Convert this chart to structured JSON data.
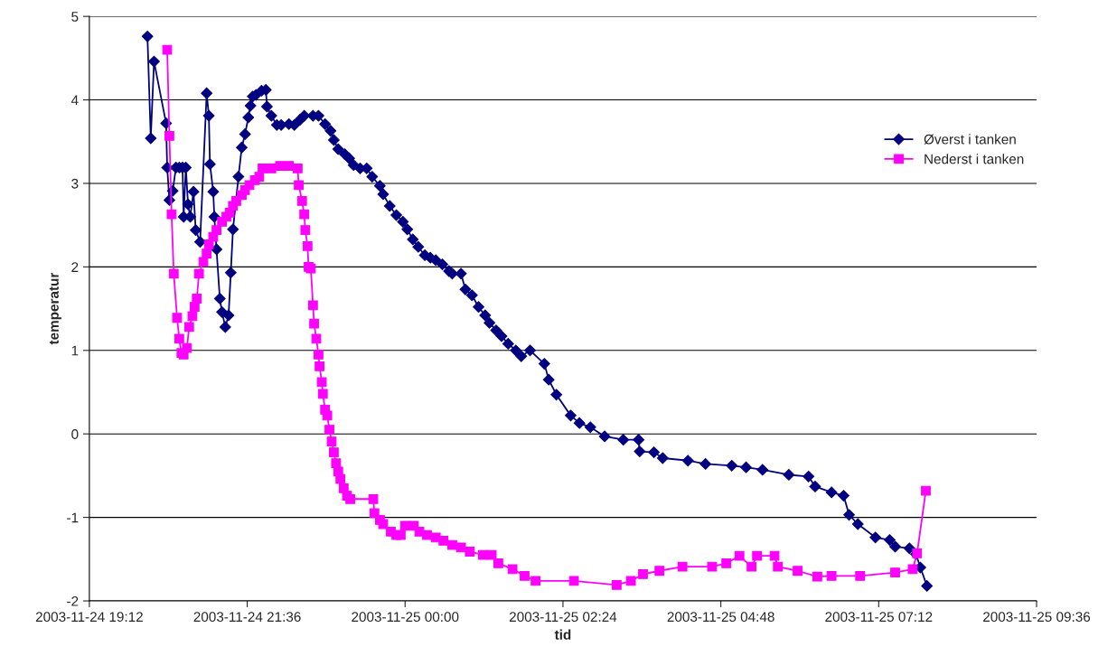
{
  "chart_data": {
    "type": "line",
    "xlabel": "tid",
    "ylabel": "temperatur",
    "xlim": [
      "2003-11-24T19:12",
      "2003-11-25T09:36"
    ],
    "ylim": [
      -2,
      5
    ],
    "xticks": [
      {
        "value": "2003-11-24T19:12",
        "label": "2003-11-24 19:12"
      },
      {
        "value": "2003-11-24T21:36",
        "label": "2003-11-24 21:36"
      },
      {
        "value": "2003-11-25T00:00",
        "label": "2003-11-25 00:00"
      },
      {
        "value": "2003-11-25T02:24",
        "label": "2003-11-25 02:24"
      },
      {
        "value": "2003-11-25T04:48",
        "label": "2003-11-25 04:48"
      },
      {
        "value": "2003-11-25T07:12",
        "label": "2003-11-25 07:12"
      },
      {
        "value": "2003-11-25T09:36",
        "label": "2003-11-25 09:36"
      }
    ],
    "yticks": [
      -2,
      -1,
      0,
      1,
      2,
      3,
      4,
      5
    ],
    "grid": "y",
    "legend": "top right",
    "line_style": "solid",
    "series": [
      {
        "name": "Øverst i tanken",
        "color": "#000080",
        "marker": "diamond",
        "x": [
          "2003-11-24T20:05",
          "2003-11-24T20:08",
          "2003-11-24T20:11",
          "2003-11-24T20:22",
          "2003-11-24T20:23",
          "2003-11-24T20:25",
          "2003-11-24T20:28",
          "2003-11-24T20:31",
          "2003-11-24T20:34",
          "2003-11-24T20:37",
          "2003-11-24T20:38",
          "2003-11-24T20:40",
          "2003-11-24T20:42",
          "2003-11-24T20:44",
          "2003-11-24T20:47",
          "2003-11-24T20:49",
          "2003-11-24T20:53",
          "2003-11-24T20:59",
          "2003-11-24T21:01",
          "2003-11-24T21:02",
          "2003-11-24T21:05",
          "2003-11-24T21:06",
          "2003-11-24T21:08",
          "2003-11-24T21:11",
          "2003-11-24T21:13",
          "2003-11-24T21:16",
          "2003-11-24T21:19",
          "2003-11-24T21:21",
          "2003-11-24T21:23",
          "2003-11-24T21:28",
          "2003-11-24T21:31",
          "2003-11-24T21:34",
          "2003-11-24T21:37",
          "2003-11-24T21:39",
          "2003-11-24T21:41",
          "2003-11-24T21:44",
          "2003-11-24T21:49",
          "2003-11-24T21:53",
          "2003-11-24T21:54",
          "2003-11-24T21:58",
          "2003-11-24T22:03",
          "2003-11-24T22:07",
          "2003-11-24T22:14",
          "2003-11-24T22:19",
          "2003-11-24T22:24",
          "2003-11-24T22:28",
          "2003-11-24T22:36",
          "2003-11-24T22:41",
          "2003-11-24T22:47",
          "2003-11-24T22:52",
          "2003-11-24T22:55",
          "2003-11-24T22:59",
          "2003-11-24T23:05",
          "2003-11-24T23:09",
          "2003-11-24T23:13",
          "2003-11-24T23:19",
          "2003-11-24T23:25",
          "2003-11-24T23:30",
          "2003-11-24T23:37",
          "2003-11-24T23:40",
          "2003-11-24T23:46",
          "2003-11-24T23:52",
          "2003-11-24T23:58",
          "2003-11-25T00:02",
          "2003-11-25T00:07",
          "2003-11-25T00:12",
          "2003-11-25T00:18",
          "2003-11-25T00:23",
          "2003-11-25T00:28",
          "2003-11-25T00:34",
          "2003-11-25T00:40",
          "2003-11-25T00:43",
          "2003-11-25T00:51",
          "2003-11-25T00:55",
          "2003-11-25T01:01",
          "2003-11-25T01:07",
          "2003-11-25T01:13",
          "2003-11-25T01:17",
          "2003-11-25T01:23",
          "2003-11-25T01:28",
          "2003-11-25T01:34",
          "2003-11-25T01:41",
          "2003-11-25T01:46",
          "2003-11-25T01:54",
          "2003-11-25T02:07",
          "2003-11-25T02:11",
          "2003-11-25T02:18",
          "2003-11-25T02:31",
          "2003-11-25T02:39",
          "2003-11-25T02:49",
          "2003-11-25T03:02",
          "2003-11-25T03:19",
          "2003-11-25T03:33",
          "2003-11-25T03:34",
          "2003-11-25T03:47",
          "2003-11-25T03:55",
          "2003-11-25T04:18",
          "2003-11-25T04:34",
          "2003-11-25T04:58",
          "2003-11-25T05:11",
          "2003-11-25T05:26",
          "2003-11-25T05:50",
          "2003-11-25T06:08",
          "2003-11-25T06:14",
          "2003-11-25T06:29",
          "2003-11-25T06:40",
          "2003-11-25T06:45",
          "2003-11-25T06:53",
          "2003-11-25T07:09",
          "2003-11-25T07:22",
          "2003-11-25T07:27",
          "2003-11-25T07:40",
          "2003-11-25T07:46",
          "2003-11-25T07:50",
          "2003-11-25T07:56"
        ],
        "values": [
          4.76,
          3.54,
          4.46,
          3.72,
          3.19,
          2.8,
          2.91,
          3.19,
          3.19,
          3.19,
          2.6,
          3.19,
          2.75,
          2.6,
          2.9,
          2.44,
          2.3,
          4.08,
          3.81,
          3.23,
          2.9,
          2.6,
          2.21,
          1.62,
          1.46,
          1.28,
          1.42,
          1.93,
          2.45,
          3.08,
          3.43,
          3.59,
          3.79,
          3.93,
          4.04,
          4.06,
          4.11,
          4.12,
          3.92,
          3.81,
          3.7,
          3.7,
          3.71,
          3.7,
          3.76,
          3.81,
          3.81,
          3.81,
          3.71,
          3.63,
          3.52,
          3.41,
          3.35,
          3.3,
          3.22,
          3.18,
          3.18,
          3.08,
          2.97,
          2.87,
          2.73,
          2.62,
          2.54,
          2.45,
          2.33,
          2.24,
          2.14,
          2.11,
          2.08,
          2.03,
          1.95,
          1.92,
          1.92,
          1.73,
          1.66,
          1.52,
          1.42,
          1.33,
          1.24,
          1.17,
          1.08,
          1.0,
          0.93,
          1.0,
          0.84,
          0.65,
          0.47,
          0.22,
          0.13,
          0.08,
          -0.03,
          -0.07,
          -0.07,
          -0.21,
          -0.22,
          -0.29,
          -0.32,
          -0.36,
          -0.38,
          -0.4,
          -0.43,
          -0.49,
          -0.51,
          -0.63,
          -0.7,
          -0.74,
          -0.97,
          -1.08,
          -1.24,
          -1.27,
          -1.35,
          -1.37,
          -1.44,
          -1.6,
          -1.82
        ]
      },
      {
        "name": "Nederst i tanken",
        "color": "#FF00FF",
        "marker": "square",
        "x": [
          "2003-11-24T20:23",
          "2003-11-24T20:25",
          "2003-11-24T20:27",
          "2003-11-24T20:29",
          "2003-11-24T20:32",
          "2003-11-24T20:34",
          "2003-11-24T20:36",
          "2003-11-24T20:38",
          "2003-11-24T20:41",
          "2003-11-24T20:43",
          "2003-11-24T20:46",
          "2003-11-24T20:48",
          "2003-11-24T20:50",
          "2003-11-24T20:52",
          "2003-11-24T20:56",
          "2003-11-24T20:59",
          "2003-11-24T21:01",
          "2003-11-24T21:05",
          "2003-11-24T21:08",
          "2003-11-24T21:13",
          "2003-11-24T21:17",
          "2003-11-24T21:20",
          "2003-11-24T21:23",
          "2003-11-24T21:26",
          "2003-11-24T21:31",
          "2003-11-24T21:34",
          "2003-11-24T21:38",
          "2003-11-24T21:43",
          "2003-11-24T21:47",
          "2003-11-24T21:50",
          "2003-11-24T21:58",
          "2003-11-24T22:06",
          "2003-11-24T22:14",
          "2003-11-24T22:22",
          "2003-11-24T22:23",
          "2003-11-24T22:26",
          "2003-11-24T22:28",
          "2003-11-24T22:29",
          "2003-11-24T22:31",
          "2003-11-24T22:32",
          "2003-11-24T22:34",
          "2003-11-24T22:36",
          "2003-11-24T22:37",
          "2003-11-24T22:39",
          "2003-11-24T22:41",
          "2003-11-24T22:42",
          "2003-11-24T22:44",
          "2003-11-24T22:45",
          "2003-11-24T22:47",
          "2003-11-24T22:49",
          "2003-11-24T22:51",
          "2003-11-24T22:53",
          "2003-11-24T22:55",
          "2003-11-24T22:57",
          "2003-11-24T22:59",
          "2003-11-24T23:01",
          "2003-11-24T23:04",
          "2003-11-24T23:07",
          "2003-11-24T23:10",
          "2003-11-24T23:31",
          "2003-11-24T23:32",
          "2003-11-24T23:37",
          "2003-11-24T23:40",
          "2003-11-24T23:47",
          "2003-11-24T23:52",
          "2003-11-24T23:56",
          "2003-11-25T00:00",
          "2003-11-25T00:08",
          "2003-11-25T00:13",
          "2003-11-25T00:20",
          "2003-11-25T00:28",
          "2003-11-25T00:35",
          "2003-11-25T00:43",
          "2003-11-25T00:51",
          "2003-11-25T00:59",
          "2003-11-25T01:11",
          "2003-11-25T01:19",
          "2003-11-25T01:25",
          "2003-11-25T01:38",
          "2003-11-25T01:49",
          "2003-11-25T01:59",
          "2003-11-25T02:34",
          "2003-11-25T03:13",
          "2003-11-25T03:26",
          "2003-11-25T03:37",
          "2003-11-25T03:52",
          "2003-11-25T04:13",
          "2003-11-25T04:40",
          "2003-11-25T04:53",
          "2003-11-25T05:05",
          "2003-11-25T05:16",
          "2003-11-25T05:21",
          "2003-11-25T05:37",
          "2003-11-25T05:40",
          "2003-11-25T05:58",
          "2003-11-25T06:16",
          "2003-11-25T06:29",
          "2003-11-25T06:55",
          "2003-11-25T07:27",
          "2003-11-25T07:43",
          "2003-11-25T07:47",
          "2003-11-25T07:55"
        ],
        "values": [
          4.6,
          3.57,
          2.63,
          1.92,
          1.39,
          1.14,
          0.97,
          0.95,
          1.03,
          1.28,
          1.41,
          1.52,
          1.62,
          1.92,
          2.06,
          2.16,
          2.27,
          2.36,
          2.44,
          2.54,
          2.6,
          2.65,
          2.73,
          2.79,
          2.86,
          2.92,
          2.98,
          3.04,
          3.08,
          3.18,
          3.18,
          3.21,
          3.21,
          3.18,
          2.98,
          2.79,
          2.63,
          2.44,
          2.25,
          2.0,
          1.98,
          1.54,
          1.32,
          1.14,
          0.95,
          0.81,
          0.62,
          0.48,
          0.29,
          0.22,
          0.05,
          -0.09,
          -0.22,
          -0.35,
          -0.45,
          -0.54,
          -0.65,
          -0.74,
          -0.78,
          -0.78,
          -0.95,
          -1.03,
          -1.08,
          -1.17,
          -1.21,
          -1.21,
          -1.1,
          -1.1,
          -1.17,
          -1.21,
          -1.24,
          -1.28,
          -1.33,
          -1.36,
          -1.41,
          -1.45,
          -1.45,
          -1.55,
          -1.62,
          -1.7,
          -1.76,
          -1.76,
          -1.81,
          -1.76,
          -1.68,
          -1.64,
          -1.59,
          -1.59,
          -1.55,
          -1.46,
          -1.59,
          -1.46,
          -1.46,
          -1.59,
          -1.64,
          -1.71,
          -1.7,
          -1.7,
          -1.66,
          -1.62,
          -1.43,
          -0.68
        ]
      }
    ]
  }
}
